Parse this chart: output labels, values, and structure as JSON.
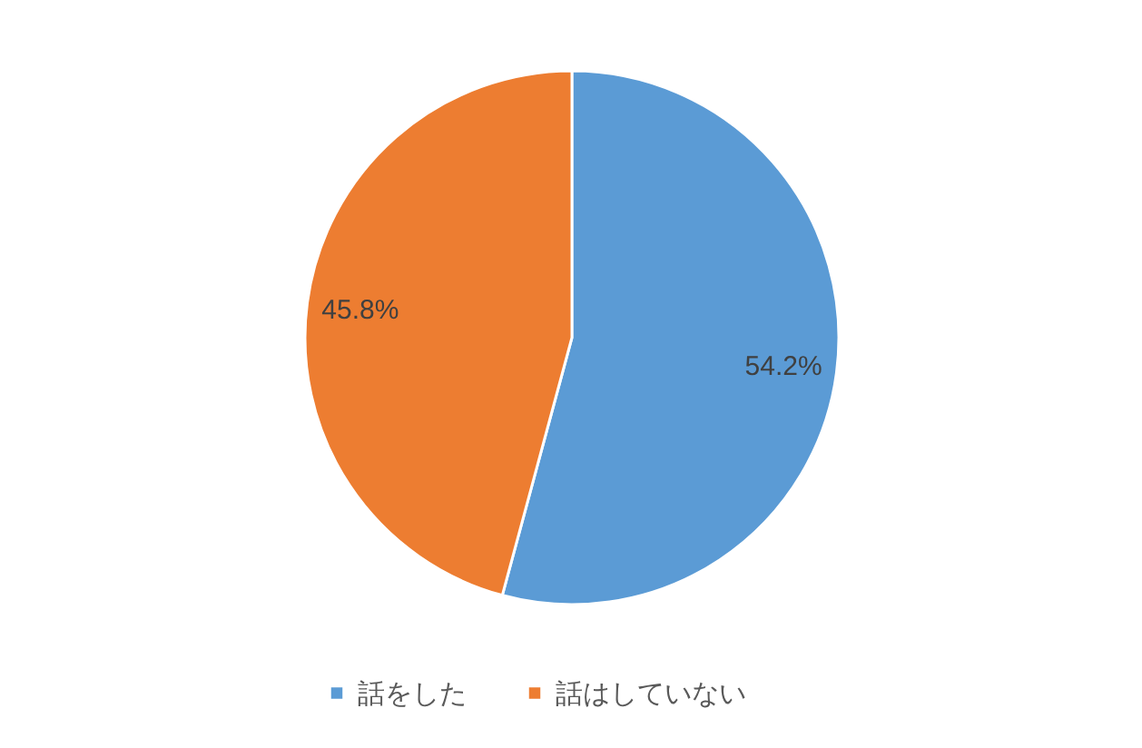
{
  "chart_data": {
    "type": "pie",
    "categories": [
      "話をした",
      "話はしていない"
    ],
    "values": [
      54.2,
      45.8
    ],
    "colors": [
      "#5b9bd5",
      "#ed7d31"
    ],
    "value_labels": [
      "54.2%",
      "45.8%"
    ],
    "legend": "bottom"
  }
}
